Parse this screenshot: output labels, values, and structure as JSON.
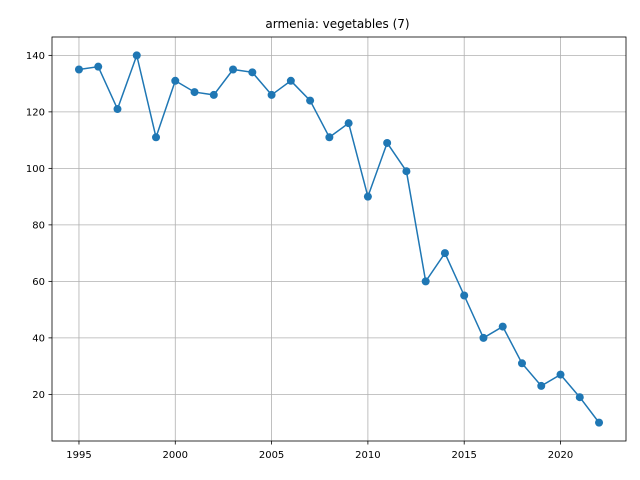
{
  "chart_data": {
    "type": "line",
    "title": "armenia: vegetables (7)",
    "xlabel": "",
    "ylabel": "",
    "x": [
      1995,
      1996,
      1997,
      1998,
      1999,
      2000,
      2001,
      2002,
      2003,
      2004,
      2005,
      2006,
      2007,
      2008,
      2009,
      2010,
      2011,
      2012,
      2013,
      2014,
      2015,
      2016,
      2017,
      2018,
      2019,
      2020,
      2021,
      2022
    ],
    "series": [
      {
        "color": "#1f77b4",
        "marker": "circle",
        "values": [
          135,
          136,
          121,
          140,
          111,
          131,
          127,
          126,
          135,
          134,
          126,
          131,
          124,
          111,
          116,
          90,
          109,
          99,
          60,
          70,
          55,
          40,
          44,
          31,
          23,
          27,
          19,
          10
        ]
      }
    ],
    "xlim": [
      1993.6,
      2023.4
    ],
    "ylim": [
      3.5,
      146.5
    ],
    "xticks": [
      1995,
      2000,
      2005,
      2010,
      2015,
      2020
    ],
    "yticks": [
      20,
      40,
      60,
      80,
      100,
      120,
      140
    ],
    "grid": true,
    "legend": "none"
  }
}
